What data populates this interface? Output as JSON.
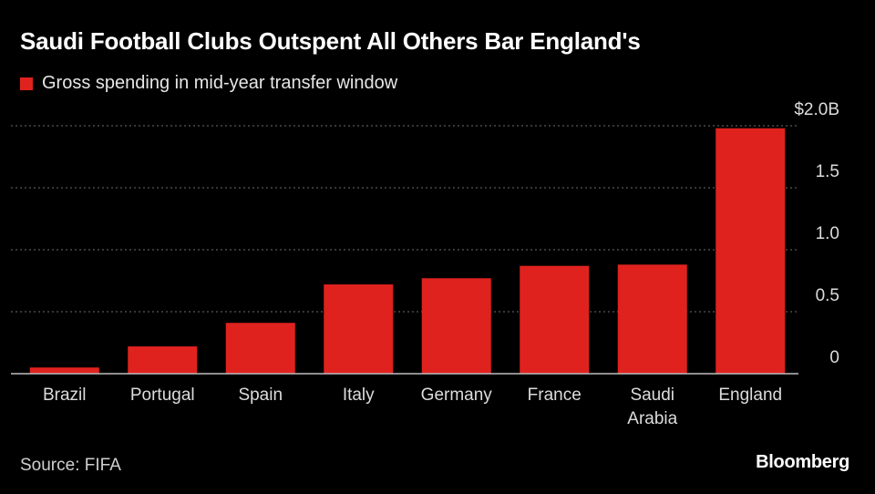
{
  "source": "Source: FIFA",
  "brand": "Bloomberg",
  "chart_data": {
    "type": "bar",
    "title": "Saudi Football Clubs Outspent All Others Bar England's",
    "legend": {
      "label": "Gross spending in mid-year transfer window",
      "color": "#e0221e",
      "placement": "top-left"
    },
    "categories": [
      "Brazil",
      "Portugal",
      "Spain",
      "Italy",
      "Germany",
      "France",
      "Saudi Arabia",
      "England"
    ],
    "category_lines": [
      [
        "Brazil"
      ],
      [
        "Portugal"
      ],
      [
        "Spain"
      ],
      [
        "Italy"
      ],
      [
        "Germany"
      ],
      [
        "France"
      ],
      [
        "Saudi",
        "Arabia"
      ],
      [
        "England"
      ]
    ],
    "series": [
      {
        "name": "Gross spending in mid-year transfer window",
        "values": [
          0.05,
          0.22,
          0.41,
          0.72,
          0.77,
          0.87,
          0.88,
          1.98
        ]
      }
    ],
    "ylim": [
      0,
      2.0
    ],
    "y_ticks": [
      0,
      0.5,
      1.0,
      1.5,
      2.0
    ],
    "y_tick_labels": [
      "0",
      "0.5",
      "1.0",
      "1.5",
      "$2.0B"
    ],
    "y_axis_side": "right",
    "grid": true,
    "bar_color": "#e0221e",
    "grid_color": "#6e6e6e",
    "axis_color": "#bdbdbd",
    "label_color": "#dcdcdc",
    "xlabel": "",
    "ylabel": ""
  }
}
